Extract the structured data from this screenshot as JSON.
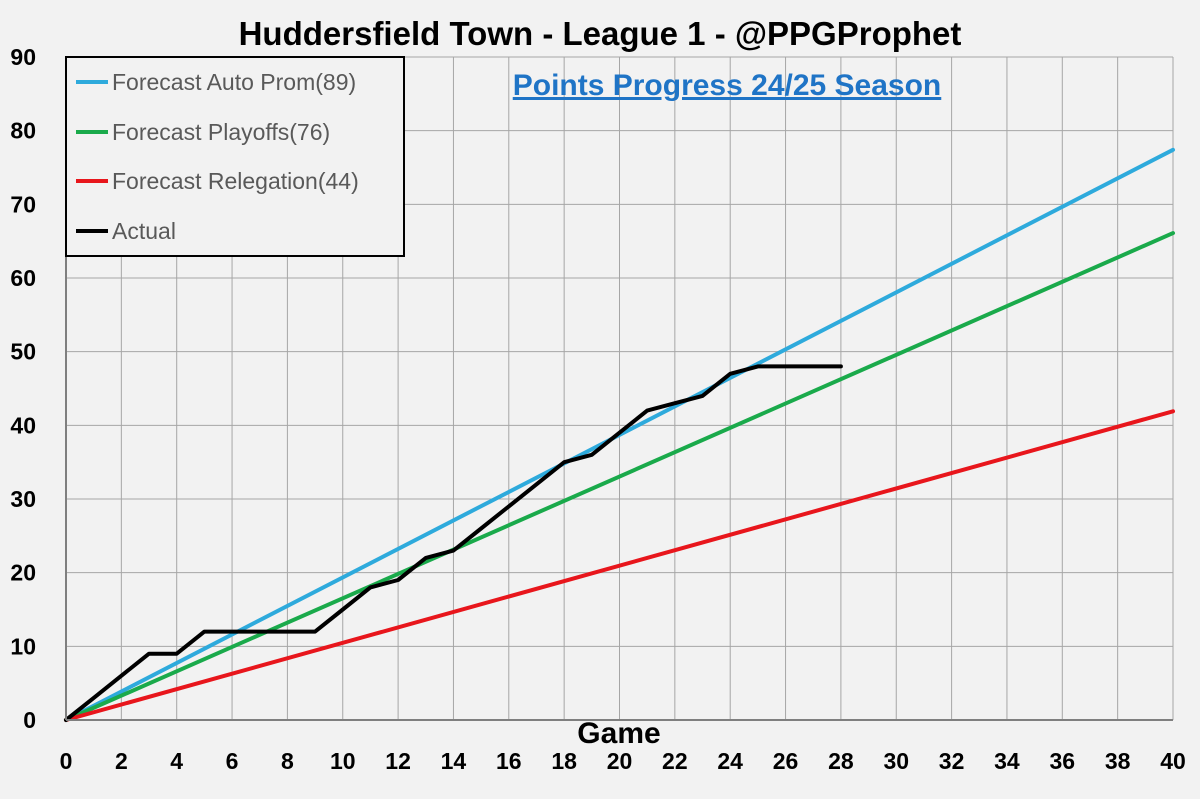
{
  "chart_data": {
    "type": "line",
    "title": "Huddersfield Town - League 1 - @PPGProphet",
    "subtitle": "Points Progress 24/25 Season",
    "xlabel": "Game",
    "ylabel": "",
    "xlim": [
      0,
      40
    ],
    "ylim": [
      0,
      90
    ],
    "x_ticks": [
      0,
      2,
      4,
      6,
      8,
      10,
      12,
      14,
      16,
      18,
      20,
      22,
      24,
      26,
      28,
      30,
      32,
      34,
      36,
      38,
      40
    ],
    "y_ticks": [
      0,
      10,
      20,
      30,
      40,
      50,
      60,
      70,
      80,
      90
    ],
    "grid": true,
    "legend_position": "top-left",
    "series": [
      {
        "name": "Forecast Auto Prom(89)",
        "color": "#2eaadc",
        "x": [
          0,
          40
        ],
        "values": [
          0,
          77.4
        ]
      },
      {
        "name": "Forecast Playoffs(76)",
        "color": "#1aaa4b",
        "x": [
          0,
          40
        ],
        "values": [
          0,
          66.1
        ]
      },
      {
        "name": "Forecast Relegation(44)",
        "color": "#e8161c",
        "x": [
          0,
          40
        ],
        "values": [
          0,
          41.9
        ]
      },
      {
        "name": "Actual",
        "color": "#000000",
        "x": [
          0,
          1,
          2,
          3,
          4,
          5,
          6,
          7,
          8,
          9,
          10,
          11,
          12,
          13,
          14,
          15,
          16,
          17,
          18,
          19,
          20,
          21,
          22,
          23,
          24,
          25,
          26,
          27,
          28
        ],
        "values": [
          0,
          3,
          6,
          9,
          9,
          12,
          12,
          12,
          12,
          12,
          15,
          18,
          19,
          22,
          23,
          26,
          29,
          32,
          35,
          36,
          39,
          42,
          43,
          44,
          47,
          48,
          48,
          48,
          48
        ]
      }
    ]
  }
}
